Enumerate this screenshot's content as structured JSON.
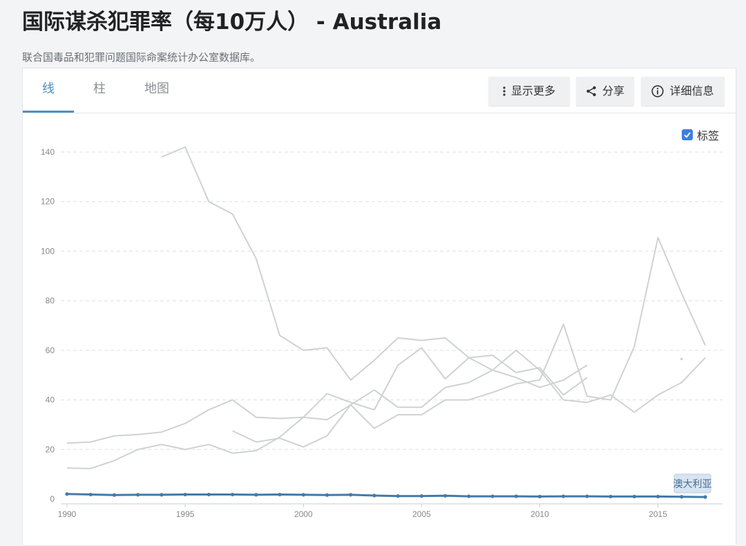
{
  "page": {
    "title": "国际谋杀犯罪率（每10万人） - Australia",
    "subtitle": "联合国毒品和犯罪问题国际命案统计办公室数据库。"
  },
  "tabs": [
    {
      "label": "线",
      "active": true
    },
    {
      "label": "柱",
      "active": false
    },
    {
      "label": "地图",
      "active": false
    }
  ],
  "toolbar": {
    "more_label": "显示更多",
    "share_label": "分享",
    "details_label": "详细信息"
  },
  "legend_toggle": {
    "label": "标签",
    "checked": true
  },
  "colors": {
    "highlight": "#4479a8",
    "background_series": "#cfd1d3",
    "accent": "#4d8fc2"
  },
  "chart_data": {
    "type": "line",
    "title": "",
    "xlabel": "",
    "ylabel": "",
    "xlim": [
      1990,
      2017
    ],
    "ylim": [
      0,
      140
    ],
    "x_ticks": [
      1990,
      1995,
      2000,
      2005,
      2010,
      2015
    ],
    "y_ticks": [
      0,
      20,
      40,
      60,
      80,
      100,
      120,
      140
    ],
    "grid": true,
    "highlighted_series": {
      "name": "澳大利亚",
      "x": [
        1990,
        1991,
        1992,
        1993,
        1994,
        1995,
        1996,
        1997,
        1998,
        1999,
        2000,
        2001,
        2002,
        2003,
        2004,
        2005,
        2006,
        2007,
        2008,
        2009,
        2010,
        2011,
        2012,
        2013,
        2014,
        2015,
        2016,
        2017
      ],
      "y": [
        2.0,
        1.8,
        1.6,
        1.7,
        1.7,
        1.8,
        1.8,
        1.8,
        1.7,
        1.8,
        1.7,
        1.6,
        1.7,
        1.4,
        1.2,
        1.2,
        1.3,
        1.1,
        1.1,
        1.1,
        1.0,
        1.1,
        1.1,
        1.0,
        1.0,
        1.0,
        0.9,
        0.8
      ]
    },
    "background_series": [
      {
        "x": [
          1994,
          1995,
          1996,
          1997,
          1998,
          1999,
          2000,
          2001,
          2002,
          2003,
          2004,
          2005,
          2006,
          2007,
          2008,
          2009,
          2010,
          2011,
          2012,
          2013
        ],
        "y": [
          138,
          142,
          120,
          115,
          97,
          66,
          60,
          61,
          48,
          56,
          65,
          64,
          65,
          57,
          52,
          49,
          45,
          48,
          54,
          null
        ]
      },
      {
        "x": [
          1990,
          1991,
          1992,
          1993,
          1994,
          1995,
          1996,
          1997,
          1998,
          1999,
          2000,
          2001,
          2002,
          2003,
          2004,
          2005,
          2006,
          2007,
          2008,
          2009,
          2010,
          2011,
          2012,
          2013,
          2014,
          2015,
          2016,
          2017
        ],
        "y": [
          22.5,
          23,
          25.5,
          26,
          27,
          30.5,
          36,
          40,
          33,
          32.5,
          33,
          32,
          38,
          44,
          37,
          37,
          45,
          47,
          52,
          60,
          52,
          40,
          39,
          42,
          35,
          42,
          47,
          57
        ]
      },
      {
        "x": [
          1990,
          1991,
          1992,
          1993,
          1994,
          1995,
          1996,
          1997,
          1998,
          1999,
          2000,
          2001,
          2002,
          2003,
          2004,
          2005,
          2006,
          2007,
          2008,
          2009,
          2010,
          2011,
          2012
        ],
        "y": [
          12.5,
          12.3,
          15.5,
          20,
          22,
          20,
          22,
          18.5,
          19.5,
          25,
          33,
          42.5,
          39,
          36,
          54,
          61,
          48.5,
          57,
          58,
          51,
          53,
          42,
          49
        ]
      },
      {
        "x": [
          1997,
          1998,
          1999,
          2000,
          2001,
          2002,
          2003,
          2004,
          2005,
          2006,
          2007,
          2008,
          2009,
          2010,
          2011,
          2012,
          2013,
          2014,
          2015,
          2016,
          2017
        ],
        "y": [
          27.5,
          23,
          24.5,
          21,
          25.5,
          38,
          28.5,
          34,
          34,
          40,
          40,
          43,
          46.5,
          48,
          70.5,
          41.5,
          40,
          61.5,
          105.5,
          83,
          62
        ]
      }
    ],
    "isolated_points": [
      {
        "x": 2016,
        "y": 56.5
      }
    ]
  }
}
